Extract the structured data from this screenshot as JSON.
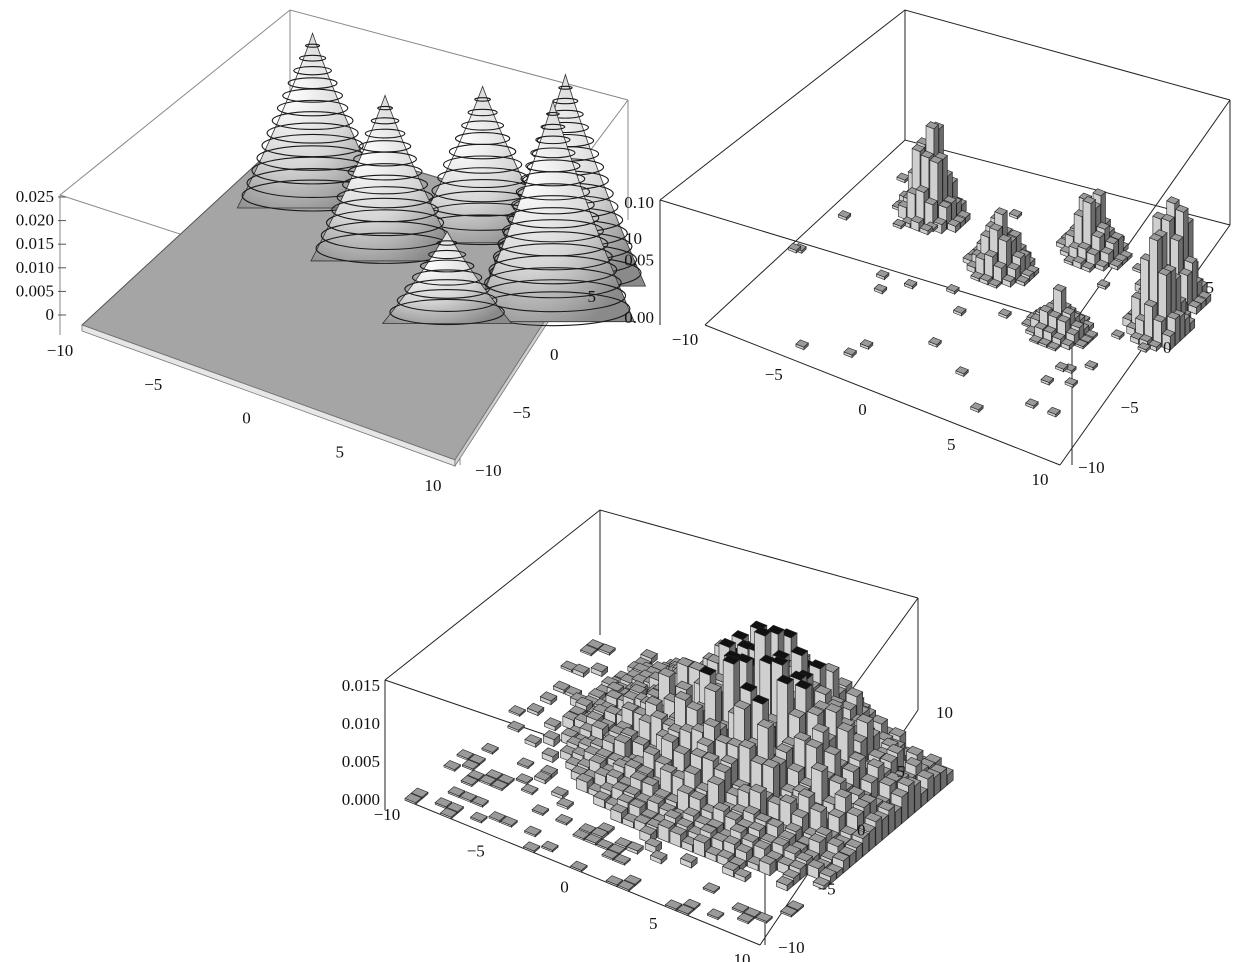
{
  "chart_data": [
    {
      "type": "surface3d",
      "title": "",
      "xlabel": "",
      "ylabel": "",
      "zlabel": "",
      "xlim": [
        -10,
        10
      ],
      "ylim": [
        -10,
        10
      ],
      "zlim": [
        0,
        0.025
      ],
      "x_ticks": [
        "−10",
        "−5",
        "0",
        "5",
        "10"
      ],
      "y_ticks": [
        "−10",
        "−5",
        "0",
        "5",
        "10"
      ],
      "z_ticks": [
        "0",
        "0.005",
        "0.010",
        "0.015",
        "0.020",
        "0.025"
      ],
      "peaks": [
        {
          "x": -6,
          "y": 5,
          "z": 0.019
        },
        {
          "x": -1,
          "y": 3,
          "z": 0.018
        },
        {
          "x": 4,
          "y": 0,
          "z": 0.01
        },
        {
          "x": 2,
          "y": 7,
          "z": 0.017
        },
        {
          "x": 7,
          "y": 6,
          "z": 0.023
        },
        {
          "x": 8,
          "y": 3,
          "z": 0.024
        }
      ],
      "contours": true,
      "surface_color": "#a8a8a8"
    },
    {
      "type": "histogram3d",
      "title": "",
      "xlim": [
        -10,
        10
      ],
      "ylim": [
        -10,
        10
      ],
      "zlim": [
        0,
        0.1
      ],
      "x_ticks": [
        "−10",
        "−5",
        "0",
        "5",
        "10"
      ],
      "y_ticks": [
        "−10",
        "−5",
        "0",
        "5",
        "10"
      ],
      "z_ticks": [
        "0.00",
        "0.05",
        "0.10"
      ],
      "clusters": [
        {
          "x": -6,
          "y": 5,
          "height": 0.08
        },
        {
          "x": -1,
          "y": 3,
          "height": 0.05
        },
        {
          "x": 4,
          "y": 0,
          "height": 0.03
        },
        {
          "x": 2,
          "y": 7,
          "height": 0.05
        },
        {
          "x": 7,
          "y": 6,
          "height": 0.1
        },
        {
          "x": 8,
          "y": 3,
          "height": 0.09
        }
      ],
      "bar_color": "#9a9a9a"
    },
    {
      "type": "histogram3d",
      "title": "",
      "xlim": [
        -10,
        10
      ],
      "ylim": [
        -10,
        10
      ],
      "zlim": [
        0,
        0.015
      ],
      "x_ticks": [
        "−10",
        "−5",
        "0",
        "5",
        "10"
      ],
      "y_ticks": [
        "−10",
        "−5",
        "0",
        "5",
        "10"
      ],
      "z_ticks": [
        "0.000",
        "0.005",
        "0.010",
        "0.015"
      ],
      "distribution": "broad, centered near (2, 4)",
      "max_height": 0.015,
      "bar_color": "#9a9a9a"
    }
  ]
}
